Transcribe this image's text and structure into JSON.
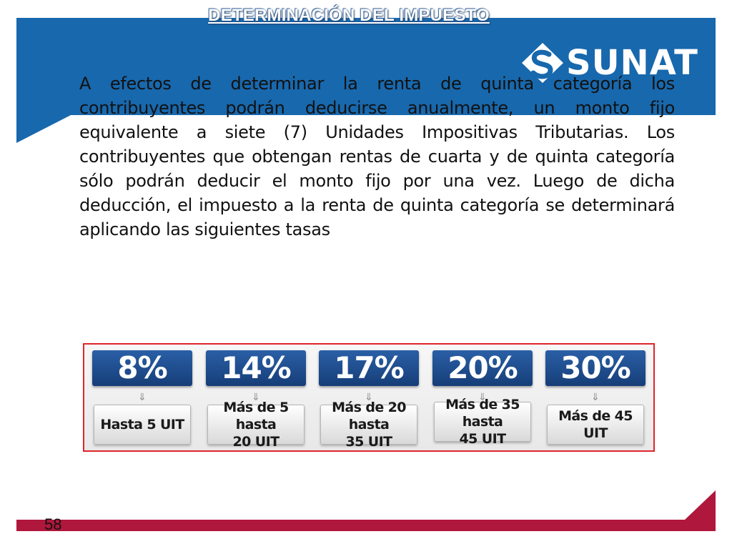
{
  "slide": {
    "title": "DETERMINACIÓN DEL IMPUESTO",
    "page_number": "58",
    "colors": {
      "header_blue": "#1868ad",
      "footer_red": "#b0173c",
      "panel_border": "#e0242b",
      "rate_box_blue": "#1f4f91"
    }
  },
  "logo": {
    "icon": "sunat-s-icon",
    "text": "SUNAT"
  },
  "body": {
    "paragraph": "A efectos de determinar la renta de quinta categoría los contribuyentes podrán deducirse anualmente, un monto fijo equivalente a siete (7) Unidades Impositivas Tributarias. Los contribuyentes que obtengan rentas de cuarta y de quinta categoría sólo podrán deducir el monto fijo por una vez. Luego de dicha deducción, el impuesto a la renta de quinta categoría se determinará aplicando las siguientes tasas"
  },
  "rates": [
    {
      "rate": "8%",
      "bracket": "Hasta 5 UIT"
    },
    {
      "rate": "14%",
      "bracket": "Más de 5 hasta\n20 UIT"
    },
    {
      "rate": "17%",
      "bracket": "Más de 20 hasta\n35 UIT"
    },
    {
      "rate": "20%",
      "bracket": "Más de 35 hasta\n45 UIT"
    },
    {
      "rate": "30%",
      "bracket": "Más de 45 UIT"
    }
  ]
}
